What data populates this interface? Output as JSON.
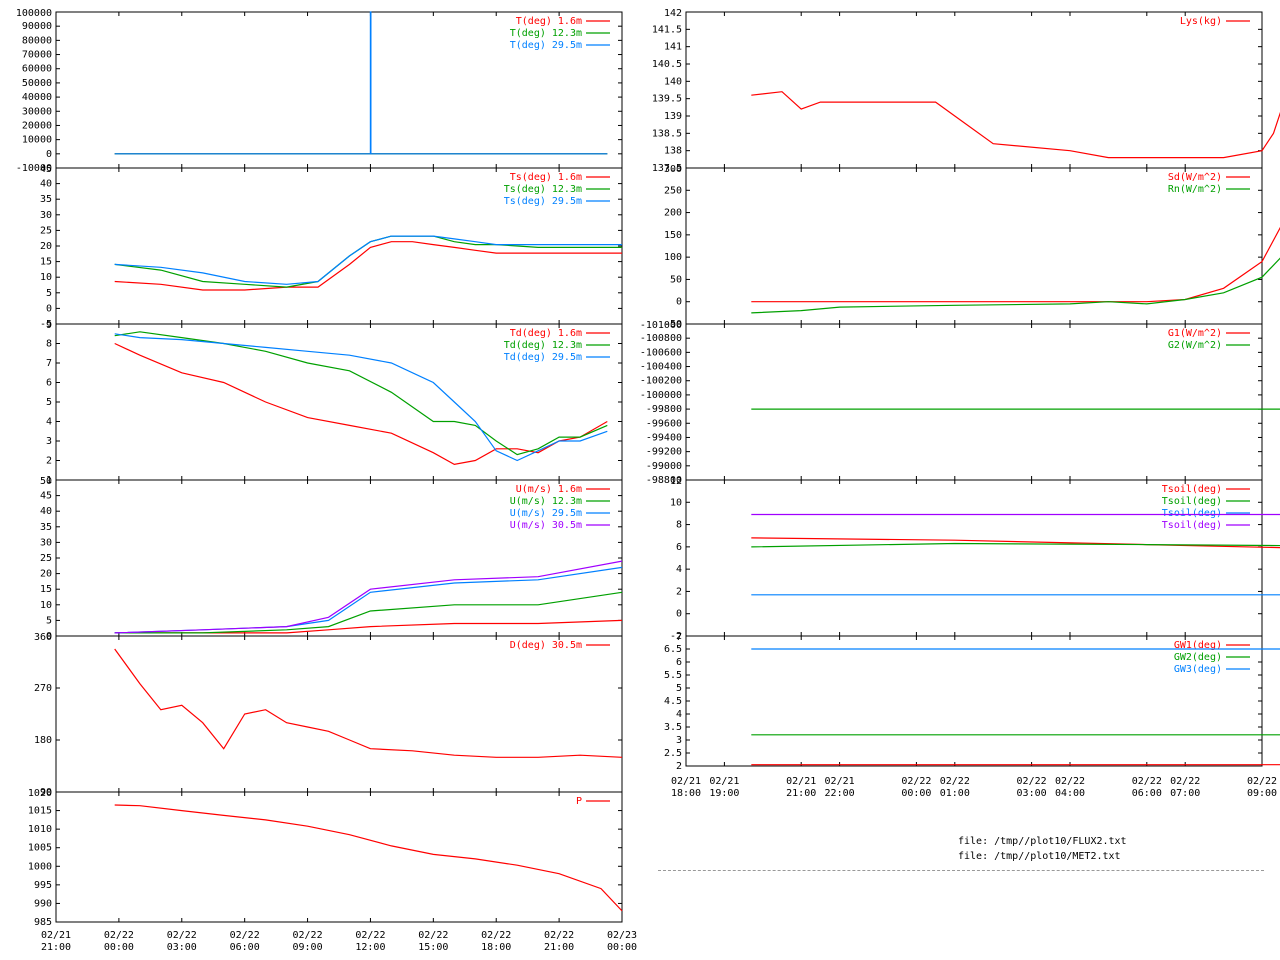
{
  "colors": {
    "red": "#ff0000",
    "green": "#00a000",
    "blue": "#0080ff",
    "purple": "#a000ff",
    "axes": "#000000"
  },
  "files": [
    "file: /tmp//plot10/FLUX2.txt",
    "file: /tmp//plot10/MET2.txt"
  ],
  "chart_data": [
    {
      "id": "T",
      "type": "line",
      "column": "left",
      "ylim": [
        -10000,
        100000
      ],
      "yticks": [
        "100000",
        "90000",
        "80000",
        "70000",
        "60000",
        "50000",
        "40000",
        "30000",
        "20000",
        "10000",
        "0",
        "-10000"
      ],
      "series": [
        {
          "name": "T(deg)  1.6m",
          "color": "red",
          "x": [
            23.8,
            47.3
          ],
          "values": [
            0,
            0
          ]
        },
        {
          "name": "T(deg) 12.3m",
          "color": "green",
          "x": [
            23.8,
            47.3
          ],
          "values": [
            0,
            0
          ]
        },
        {
          "name": "T(deg) 29.5m",
          "color": "blue",
          "x": [
            23.8,
            36.0,
            36.0,
            36.02,
            36.02,
            47.3
          ],
          "values": [
            0,
            0,
            100000,
            100000,
            0,
            0
          ]
        }
      ]
    },
    {
      "id": "Ts",
      "type": "line",
      "column": "left",
      "ylim": [
        -10,
        45
      ],
      "yticks": [
        "45",
        "40",
        "35",
        "30",
        "25",
        "20",
        "15",
        "10",
        "5",
        "0",
        "-5"
      ],
      "series": [
        {
          "name": "Ts(deg)  1.6m",
          "color": "red",
          "x": [
            23.8,
            26,
            28,
            30,
            32,
            33.5,
            35,
            36,
            37,
            38,
            39,
            40,
            41,
            42,
            44,
            46,
            48
          ],
          "values": [
            5,
            4,
            2,
            2,
            3,
            3,
            11,
            17,
            19,
            19,
            18,
            17,
            16,
            15,
            15,
            15,
            15
          ]
        },
        {
          "name": "Ts(deg) 12.3m",
          "color": "green",
          "x": [
            23.8,
            26,
            28,
            30,
            32,
            33.5,
            35,
            36,
            37,
            38,
            39,
            40,
            41,
            42,
            44,
            46,
            48
          ],
          "values": [
            11,
            9,
            5,
            4,
            3,
            5,
            14,
            19,
            21,
            21,
            21,
            19,
            18,
            18,
            17,
            17,
            17
          ]
        },
        {
          "name": "Ts(deg) 29.5m",
          "color": "blue",
          "x": [
            23.8,
            26,
            28,
            30,
            32,
            33.5,
            35,
            36,
            37,
            38,
            39,
            40,
            41,
            42,
            44,
            46,
            48
          ],
          "values": [
            11,
            10,
            8,
            5,
            4,
            5,
            14,
            19,
            21,
            21,
            21,
            20,
            19,
            18,
            18,
            18,
            18
          ]
        }
      ]
    },
    {
      "id": "Td",
      "type": "line",
      "column": "left",
      "ylim": [
        1,
        9
      ],
      "yticks": [
        "9",
        "8",
        "7",
        "6",
        "5",
        "4",
        "3",
        "2",
        "1"
      ],
      "series": [
        {
          "name": "Td(deg)  1.6m",
          "color": "red",
          "x": [
            23.8,
            25,
            27,
            29,
            31,
            33,
            35,
            37,
            39,
            40,
            41,
            42,
            43,
            44,
            45,
            46,
            47.3
          ],
          "values": [
            8,
            7.4,
            6.5,
            6.0,
            5.0,
            4.2,
            3.8,
            3.4,
            2.4,
            1.8,
            2.0,
            2.6,
            2.6,
            2.4,
            3.0,
            3.2,
            4.0
          ]
        },
        {
          "name": "Td(deg) 12.3m",
          "color": "green",
          "x": [
            23.8,
            25,
            27,
            29,
            31,
            33,
            35,
            37,
            39,
            40,
            41,
            42,
            43,
            44,
            45,
            46,
            47.3
          ],
          "values": [
            8.4,
            8.6,
            8.3,
            8.0,
            7.6,
            7.0,
            6.6,
            5.5,
            4.0,
            4.0,
            3.8,
            3.0,
            2.3,
            2.6,
            3.2,
            3.2,
            3.8
          ]
        },
        {
          "name": "Td(deg) 29.5m",
          "color": "blue",
          "x": [
            23.8,
            25,
            27,
            29,
            31,
            33,
            35,
            37,
            39,
            40,
            41,
            42,
            43,
            44,
            45,
            46,
            47.3
          ],
          "values": [
            8.5,
            8.3,
            8.2,
            8.0,
            7.8,
            7.6,
            7.4,
            7.0,
            6.0,
            5.0,
            4.0,
            2.5,
            2.0,
            2.5,
            3.0,
            3.0,
            3.5
          ]
        }
      ]
    },
    {
      "id": "U",
      "type": "line",
      "column": "left",
      "ylim": [
        0,
        50
      ],
      "yticks": [
        "50",
        "45",
        "40",
        "35",
        "30",
        "25",
        "20",
        "15",
        "10",
        "5",
        "0"
      ],
      "series": [
        {
          "name": "U(m/s)  1.6m",
          "color": "red",
          "x": [
            23.8,
            28,
            32,
            34,
            36,
            40,
            44,
            48
          ],
          "values": [
            1,
            1,
            1,
            2,
            3,
            4,
            4,
            5
          ]
        },
        {
          "name": "U(m/s) 12.3m",
          "color": "green",
          "x": [
            23.8,
            28,
            32,
            34,
            36,
            40,
            44,
            48
          ],
          "values": [
            1,
            1,
            2,
            3,
            8,
            10,
            10,
            14
          ]
        },
        {
          "name": "U(m/s) 29.5m",
          "color": "blue",
          "x": [
            23.8,
            28,
            32,
            34,
            36,
            40,
            44,
            48
          ],
          "values": [
            1,
            2,
            3,
            5,
            14,
            17,
            18,
            22
          ]
        },
        {
          "name": "U(m/s) 30.5m",
          "color": "purple",
          "x": [
            23.8,
            28,
            32,
            34,
            36,
            40,
            44,
            48
          ],
          "values": [
            1,
            2,
            3,
            6,
            15,
            18,
            19,
            24
          ]
        }
      ]
    },
    {
      "id": "D",
      "type": "line",
      "column": "left",
      "ylim": [
        0,
        360
      ],
      "yticks": [
        "360",
        "270",
        "180",
        "90"
      ],
      "series": [
        {
          "name": "D(deg)  30.5m",
          "color": "red",
          "x": [
            23.8,
            25,
            26,
            27,
            28,
            29,
            30,
            31,
            32,
            33,
            34,
            35,
            36,
            38,
            40,
            42,
            44,
            46,
            48
          ],
          "values": [
            330,
            250,
            190,
            200,
            160,
            100,
            180,
            190,
            160,
            150,
            140,
            120,
            100,
            95,
            85,
            80,
            80,
            85,
            80
          ]
        }
      ]
    },
    {
      "id": "P",
      "type": "line",
      "column": "left",
      "ylim": [
        985,
        1020
      ],
      "yticks": [
        "1020",
        "1015",
        "1010",
        "1005",
        "1000",
        "995",
        "990",
        "985"
      ],
      "series": [
        {
          "name": "P",
          "color": "red",
          "x": [
            23.8,
            25,
            27,
            29,
            31,
            33,
            35,
            37,
            39,
            41,
            43,
            45,
            47,
            48
          ],
          "values": [
            1016.5,
            1016.3,
            1015.0,
            1013.7,
            1012.5,
            1010.8,
            1008.5,
            1005.5,
            1003.2,
            1002.0,
            1000.3,
            998.0,
            994.0,
            988.0
          ]
        }
      ]
    },
    {
      "id": "Lys",
      "type": "line",
      "column": "right",
      "ylim": [
        137.5,
        142
      ],
      "yticks": [
        "142",
        "141.5",
        "141",
        "140.5",
        "140",
        "139.5",
        "139",
        "138.5",
        "138",
        "137.5"
      ],
      "series": [
        {
          "name": "Lys(kg)",
          "color": "red",
          "x": [
            19.7,
            20.5,
            21.0,
            21.5,
            24.5,
            25.0,
            26.0,
            28.0,
            29.0,
            30.0,
            31.0,
            32.0,
            33.0,
            33.3,
            33.6,
            33.9
          ],
          "values": [
            139.6,
            139.7,
            139.2,
            139.4,
            139.4,
            139.0,
            138.2,
            138.0,
            137.8,
            137.8,
            137.8,
            137.8,
            138.0,
            138.5,
            139.5,
            142.0
          ]
        }
      ]
    },
    {
      "id": "Sd",
      "type": "line",
      "column": "right",
      "ylim": [
        -50,
        300
      ],
      "yticks": [
        "300",
        "250",
        "200",
        "150",
        "100",
        "50",
        "0",
        "-50"
      ],
      "series": [
        {
          "name": "Sd(W/m^2)",
          "color": "red",
          "x": [
            19.7,
            22,
            25,
            28,
            30,
            31,
            32,
            33,
            33.5,
            33.9
          ],
          "values": [
            0,
            0,
            0,
            0,
            0,
            5,
            30,
            90,
            170,
            280
          ]
        },
        {
          "name": "Rn(W/m^2)",
          "color": "green",
          "x": [
            19.7,
            21,
            22,
            25,
            28,
            29,
            30,
            31,
            32,
            33,
            33.5,
            33.9
          ],
          "values": [
            -25,
            -20,
            -12,
            -8,
            -5,
            0,
            -5,
            5,
            20,
            55,
            100,
            160
          ]
        }
      ]
    },
    {
      "id": "G",
      "type": "line",
      "column": "right",
      "ylim": [
        -101000,
        -98800
      ],
      "yticks": [
        "-101000",
        "-100800",
        "-100600",
        "-100400",
        "-100200",
        "-100000",
        "-99800",
        "-99600",
        "-99400",
        "-99200",
        "-99000",
        "-98800"
      ],
      "series": [
        {
          "name": "G1(W/m^2)",
          "color": "red",
          "x": [],
          "values": []
        },
        {
          "name": "G2(W/m^2)",
          "color": "green",
          "x": [
            19.7,
            33.9
          ],
          "values": [
            -100000,
            -100000
          ]
        }
      ]
    },
    {
      "id": "Tsoil",
      "type": "line",
      "column": "right",
      "ylim": [
        -2,
        12
      ],
      "yticks": [
        "12",
        "10",
        "8",
        "6",
        "4",
        "2",
        "0",
        "-2"
      ],
      "series": [
        {
          "name": "Tsoil(deg)",
          "color": "red",
          "x": [
            19.7,
            25,
            30,
            33.9
          ],
          "values": [
            6.8,
            6.6,
            6.2,
            5.9
          ]
        },
        {
          "name": "Tsoil(deg)",
          "color": "green",
          "x": [
            19.7,
            25,
            30,
            33.9
          ],
          "values": [
            6.0,
            6.3,
            6.2,
            6.1
          ]
        },
        {
          "name": "Tsoil(deg)",
          "color": "blue",
          "x": [
            19.7,
            25,
            30,
            33.9
          ],
          "values": [
            1.7,
            1.7,
            1.7,
            1.7
          ]
        },
        {
          "name": "Tsoil(deg)",
          "color": "purple",
          "x": [
            19.7,
            25,
            30,
            33.9
          ],
          "values": [
            8.9,
            8.9,
            8.9,
            8.9
          ]
        }
      ]
    },
    {
      "id": "GW",
      "type": "line",
      "column": "right",
      "ylim": [
        2,
        7
      ],
      "yticks": [
        "7",
        "6.5",
        "6",
        "5.5",
        "5",
        "4.5",
        "4",
        "3.5",
        "3",
        "2.5",
        "2"
      ],
      "series": [
        {
          "name": "GW1(deg)",
          "color": "red",
          "x": [
            19.7,
            33.9
          ],
          "values": [
            2.05,
            2.05
          ]
        },
        {
          "name": "GW2(deg)",
          "color": "green",
          "x": [
            19.7,
            33.9
          ],
          "values": [
            3.2,
            3.2
          ]
        },
        {
          "name": "GW3(deg)",
          "color": "blue",
          "x": [
            19.7,
            33.9
          ],
          "values": [
            6.5,
            6.5
          ]
        }
      ]
    }
  ],
  "xaxis_left": {
    "xlim": [
      21,
      48
    ],
    "ticks": [
      {
        "x": 21,
        "date": "02/21",
        "time": "21:00"
      },
      {
        "x": 24,
        "date": "02/22",
        "time": "00:00"
      },
      {
        "x": 27,
        "date": "02/22",
        "time": "03:00"
      },
      {
        "x": 30,
        "date": "02/22",
        "time": "06:00"
      },
      {
        "x": 33,
        "date": "02/22",
        "time": "09:00"
      },
      {
        "x": 36,
        "date": "02/22",
        "time": "12:00"
      },
      {
        "x": 39,
        "date": "02/22",
        "time": "15:00"
      },
      {
        "x": 42,
        "date": "02/22",
        "time": "18:00"
      },
      {
        "x": 45,
        "date": "02/22",
        "time": "21:00"
      },
      {
        "x": 48,
        "date": "02/23",
        "time": "00:00"
      }
    ]
  },
  "xaxis_right": {
    "xlim": [
      18,
      33
    ],
    "ticks": [
      {
        "x": 18,
        "date": "02/21",
        "time": "18:00"
      },
      {
        "x": 19,
        "date": "02/21",
        "time": "19:00"
      },
      {
        "x": 21,
        "date": "02/21",
        "time": "21:00"
      },
      {
        "x": 22,
        "date": "02/21",
        "time": "22:00"
      },
      {
        "x": 24,
        "date": "02/22",
        "time": "00:00"
      },
      {
        "x": 25,
        "date": "02/22",
        "time": "01:00"
      },
      {
        "x": 27,
        "date": "02/22",
        "time": "03:00"
      },
      {
        "x": 28,
        "date": "02/22",
        "time": "04:00"
      },
      {
        "x": 30,
        "date": "02/22",
        "time": "06:00"
      },
      {
        "x": 31,
        "date": "02/22",
        "time": "07:00"
      },
      {
        "x": 33,
        "date": "02/22",
        "time": "09:00"
      }
    ]
  }
}
